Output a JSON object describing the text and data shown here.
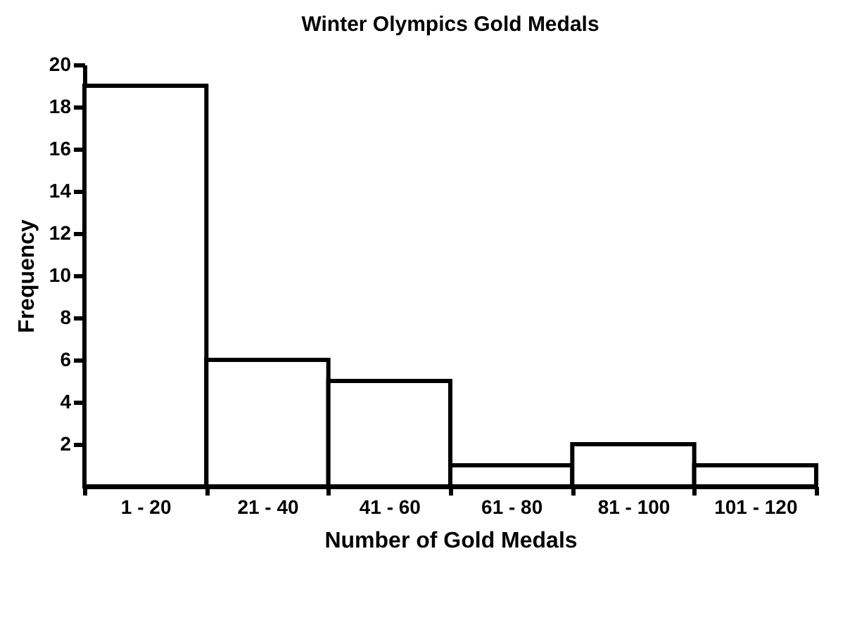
{
  "chart_data": {
    "type": "bar",
    "title": "Winter Olympics Gold Medals",
    "xlabel": "Number of Gold Medals",
    "ylabel": "Frequency",
    "categories": [
      "1 - 20",
      "21 - 40",
      "41 - 60",
      "61 - 80",
      "81 - 100",
      "101 - 120"
    ],
    "values": [
      19,
      6,
      5,
      1,
      2,
      1
    ],
    "color": "#ffffff",
    "ylim": [
      0,
      20
    ],
    "yticks": [
      2,
      4,
      6,
      8,
      10,
      12,
      14,
      16,
      18,
      20
    ],
    "grid": false
  }
}
